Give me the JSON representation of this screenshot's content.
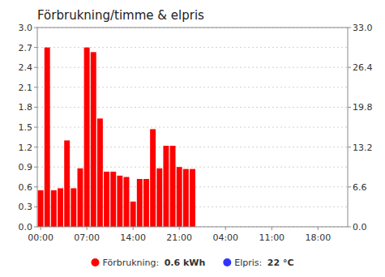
{
  "chart_data": {
    "type": "bar",
    "title": "Förbrukning/timme & elpris",
    "x": [
      0,
      1,
      2,
      3,
      4,
      5,
      6,
      7,
      8,
      9,
      10,
      11,
      12,
      13,
      14,
      15,
      16,
      17,
      18,
      19,
      20,
      21,
      22,
      23
    ],
    "values": [
      0.55,
      2.7,
      0.55,
      0.58,
      1.3,
      0.58,
      0.88,
      2.7,
      2.63,
      1.63,
      0.83,
      0.83,
      0.77,
      0.75,
      0.38,
      0.72,
      0.72,
      1.47,
      0.88,
      1.22,
      1.22,
      0.9,
      0.87,
      0.87
    ],
    "color": "#ff0000",
    "xlim": [
      -0.5,
      46.5
    ],
    "xticks": [
      {
        "value": 0,
        "label": "00:00"
      },
      {
        "value": 7,
        "label": "07:00"
      },
      {
        "value": 14,
        "label": "14:00"
      },
      {
        "value": 21,
        "label": "21:00"
      },
      {
        "value": 28,
        "label": "04:00"
      },
      {
        "value": 35,
        "label": "11:00"
      },
      {
        "value": 42,
        "label": "18:00"
      }
    ],
    "ylim": [
      0,
      3.0
    ],
    "yticks": [
      {
        "value": 0.0,
        "label": "0.0"
      },
      0.3,
      0.6,
      0.9,
      1.2,
      1.5,
      1.8,
      2.1,
      2.4,
      2.7,
      {
        "value": 3.0,
        "label": "3.0"
      }
    ],
    "y2lim": [
      0,
      33.0
    ],
    "y2ticks": [
      {
        "value": 0.0,
        "label": "0.0"
      },
      6.6,
      13.2,
      19.8,
      26.4,
      {
        "value": 33.0,
        "label": "33.0"
      }
    ],
    "grid": true,
    "annotations": [
      {
        "text": "Förbrukning: ",
        "value_text": "0.6 kWh",
        "color": "#ff0000"
      },
      {
        "text": "Elpris: ",
        "value_text": "22 °C",
        "color": "#3333ff"
      }
    ]
  }
}
